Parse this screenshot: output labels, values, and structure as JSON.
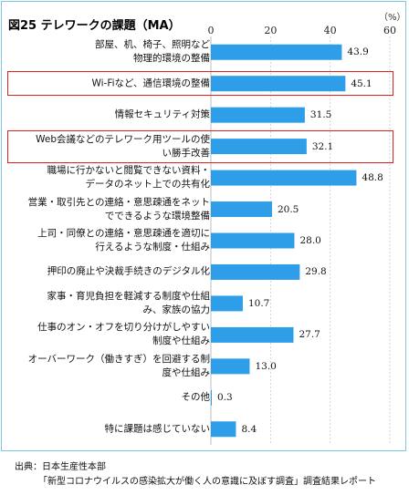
{
  "chart_data": {
    "type": "bar",
    "orientation": "horizontal",
    "title": "図25 テレワークの課題（MA）",
    "unit": "（%）",
    "xlim": [
      0,
      60
    ],
    "xticks": [
      "0",
      "20",
      "40",
      "60"
    ],
    "grid": true,
    "colors": {
      "bar": "#2e9ee8",
      "grid": "#c9c9c9",
      "highlight": "#e0201f"
    },
    "categories": [
      "部屋、机、椅子、照明など\n物理的環境の整備",
      "Wi-Fiなど、通信環境の整備",
      "情報セキュリティ対策",
      "Web会議などのテレワーク用ツールの使\nい勝手改善",
      "職場に行かないと閲覧できない資料・\nデータのネット上での共有化",
      "営業・取引先との連絡・意思疎通をネット\nでできるような環境整備",
      "上司・同僚との連絡・意思疎通を適切に\n行えるような制度・仕組み",
      "押印の廃止や決裁手続きのデジタル化",
      "家事・育児負担を軽減する制度や仕組\nみ、家族の協力",
      "仕事のオン・オフを切り分けがしやすい\n制度や仕組み",
      "オーバーワーク（働きすぎ）を回避する制\n度や仕組み",
      "その他",
      "特に課題は感じていない"
    ],
    "values": [
      43.9,
      45.1,
      31.5,
      32.1,
      48.8,
      20.5,
      28.0,
      29.8,
      10.7,
      27.7,
      13.0,
      0.3,
      8.4
    ],
    "value_labels": [
      "43.9",
      "45.1",
      "31.5",
      "32.1",
      "48.8",
      "20.5",
      "28.0",
      "29.8",
      "10.7",
      "27.7",
      "13.0",
      "0.3",
      "8.4"
    ],
    "highlighted": [
      1,
      3
    ]
  },
  "source": {
    "line1": "出典：日本生産性本部",
    "line2": "「新型コロナウイルスの感染拡大が働く人の意識に及ぼす調査」調査結果レポート"
  }
}
